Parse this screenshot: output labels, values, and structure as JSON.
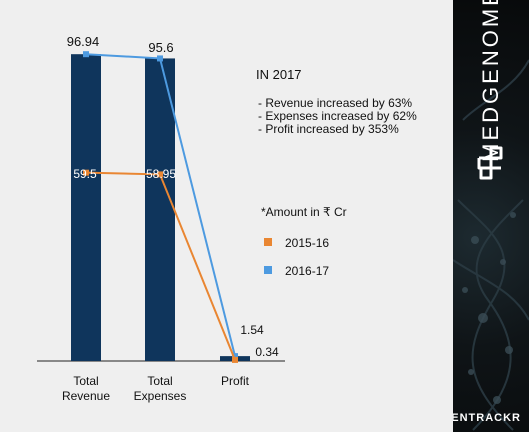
{
  "chart_data": {
    "type": "bar",
    "categories": [
      "Total\nRevenue",
      "Total\nExpenses",
      "Profit"
    ],
    "series": [
      {
        "name": "2016-17",
        "kind": "bar",
        "color": "#0f355c",
        "values": [
          96.94,
          95.6,
          1.54
        ]
      },
      {
        "name": "2015-16",
        "kind": "line",
        "color": "#e98632",
        "values": [
          59.5,
          58.95,
          0.34
        ]
      },
      {
        "name": "2016-17",
        "kind": "line",
        "color": "#4d9ae0",
        "values": [
          96.94,
          95.6,
          1.54
        ]
      }
    ],
    "data_labels": {
      "bars": [
        "96.94",
        "95.6",
        "1.54"
      ],
      "line_2015": [
        "59.5",
        "58.95",
        "0.34"
      ]
    },
    "ylim": [
      0,
      100
    ],
    "grid": false,
    "legend": [
      {
        "label": "2015-16",
        "color": "#e98632"
      },
      {
        "label": "2016-17",
        "color": "#4d9ae0"
      }
    ],
    "annotation": {
      "title": "IN  2017",
      "lines": [
        "- Revenue increased by 63%",
        "- Expenses increased by 62%",
        "- Profit increased by 353%"
      ],
      "unit_note": "*Amount in ₹ Cr"
    }
  },
  "brand": {
    "name": "MEDGENOME",
    "watermark": "ENTRACKR"
  }
}
